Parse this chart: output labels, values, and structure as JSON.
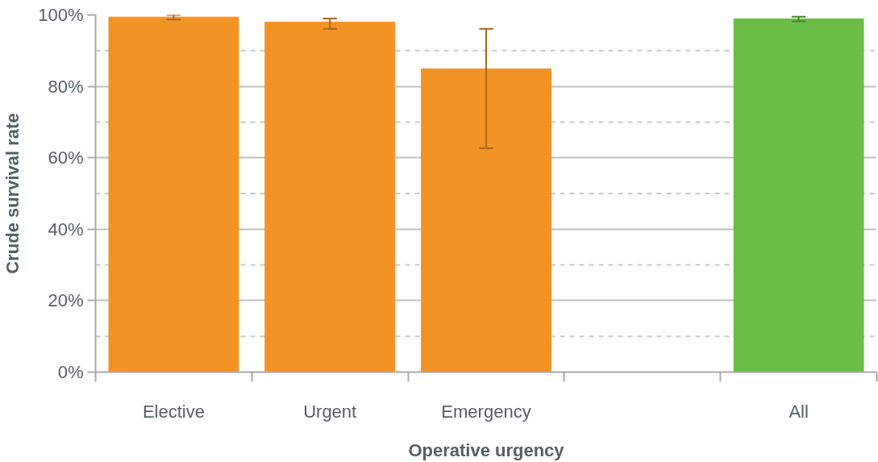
{
  "chart_data": {
    "type": "bar",
    "xlabel": "Operative urgency",
    "ylabel": "Crude survival rate",
    "categories": [
      "Elective",
      "Urgent",
      "Emergency",
      null,
      "All"
    ],
    "values": [
      99.4,
      98.0,
      84.9,
      null,
      98.9
    ],
    "colors": [
      "#f39325",
      "#f39325",
      "#f39325",
      "#f39325",
      "#6cbd45"
    ],
    "errors": [
      [
        98.7,
        100
      ],
      [
        96.1,
        99.0
      ],
      [
        62.7,
        96.1
      ],
      null,
      [
        98.2,
        99.5
      ]
    ],
    "ylim": [
      0,
      100
    ],
    "yticks": [
      {
        "value": 0,
        "label": "0%"
      },
      {
        "value": 20,
        "label": "20%"
      },
      {
        "value": 40,
        "label": "40%"
      },
      {
        "value": 60,
        "label": "60%"
      },
      {
        "value": 80,
        "label": "80%"
      },
      {
        "value": 100,
        "label": "100%"
      }
    ],
    "grid": "y",
    "ref_lines": [
      {
        "axis": "y",
        "value": 10,
        "color": "#c8c8c8",
        "line_style": "dashed"
      },
      {
        "axis": "y",
        "value": 30,
        "color": "#c8c8c8",
        "line_style": "dashed"
      },
      {
        "axis": "y",
        "value": 50,
        "color": "#c8c8c8",
        "line_style": "dashed"
      },
      {
        "axis": "y",
        "value": 70,
        "color": "#c8c8c8",
        "line_style": "dashed"
      },
      {
        "axis": "y",
        "value": 90,
        "color": "#c8c8c8",
        "line_style": "dashed"
      }
    ]
  }
}
